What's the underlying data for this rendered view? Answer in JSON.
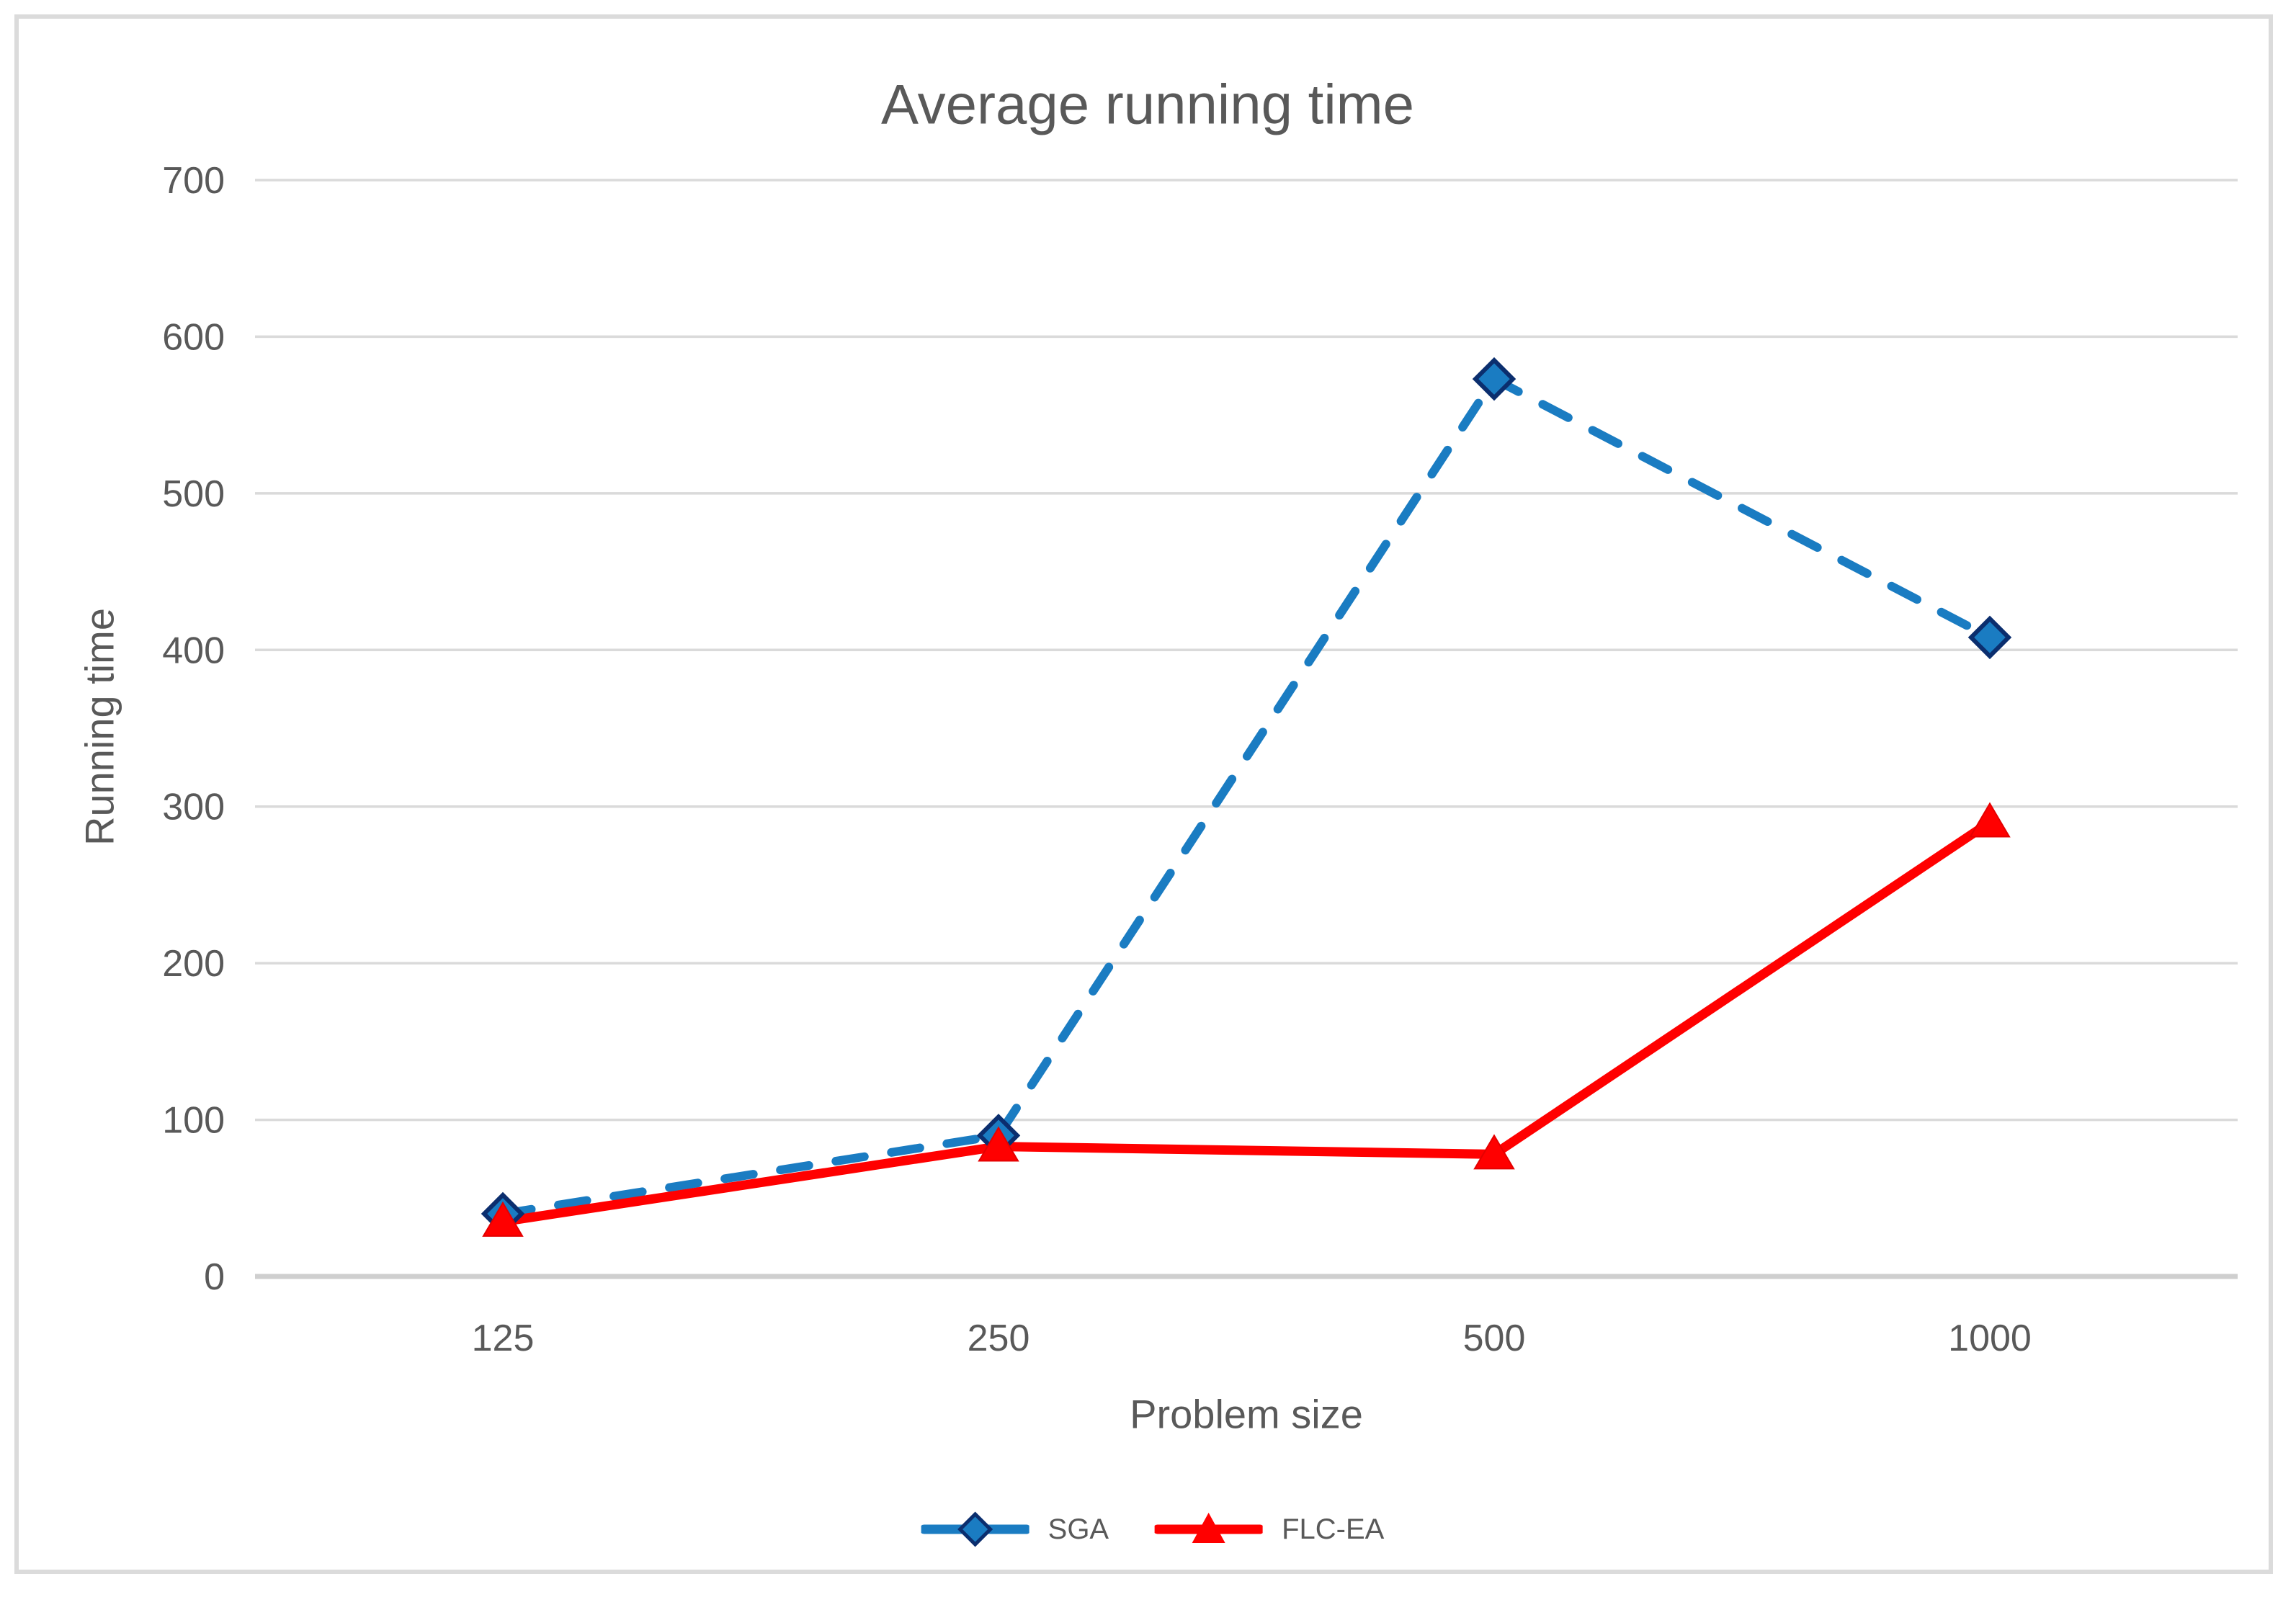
{
  "chart_data": {
    "type": "line",
    "title": "Average running time",
    "xlabel": "Problem size",
    "ylabel": "Running time",
    "categories": [
      "125",
      "250",
      "500",
      "1000"
    ],
    "y_ticks": [
      0,
      100,
      200,
      300,
      400,
      500,
      600,
      700
    ],
    "ylim": [
      0,
      700
    ],
    "grid": "horizontal-only",
    "legend_position": "bottom-center",
    "series": [
      {
        "name": "SGA",
        "values": [
          40,
          90,
          573,
          408
        ],
        "color": "#1A7CC2",
        "line_style": "dashed",
        "marker": "diamond",
        "marker_border": "#0B2E6E"
      },
      {
        "name": "FLC-EA",
        "values": [
          35,
          83,
          78,
          290
        ],
        "color": "#FF0000",
        "line_style": "solid",
        "marker": "triangle",
        "marker_border": "#E40000"
      }
    ]
  },
  "colors": {
    "text": "#595959",
    "gridline": "#DADADA",
    "axis_line": "#CFCFCF",
    "chart_border": "#DBDBDB",
    "background": "#FFFFFF"
  }
}
